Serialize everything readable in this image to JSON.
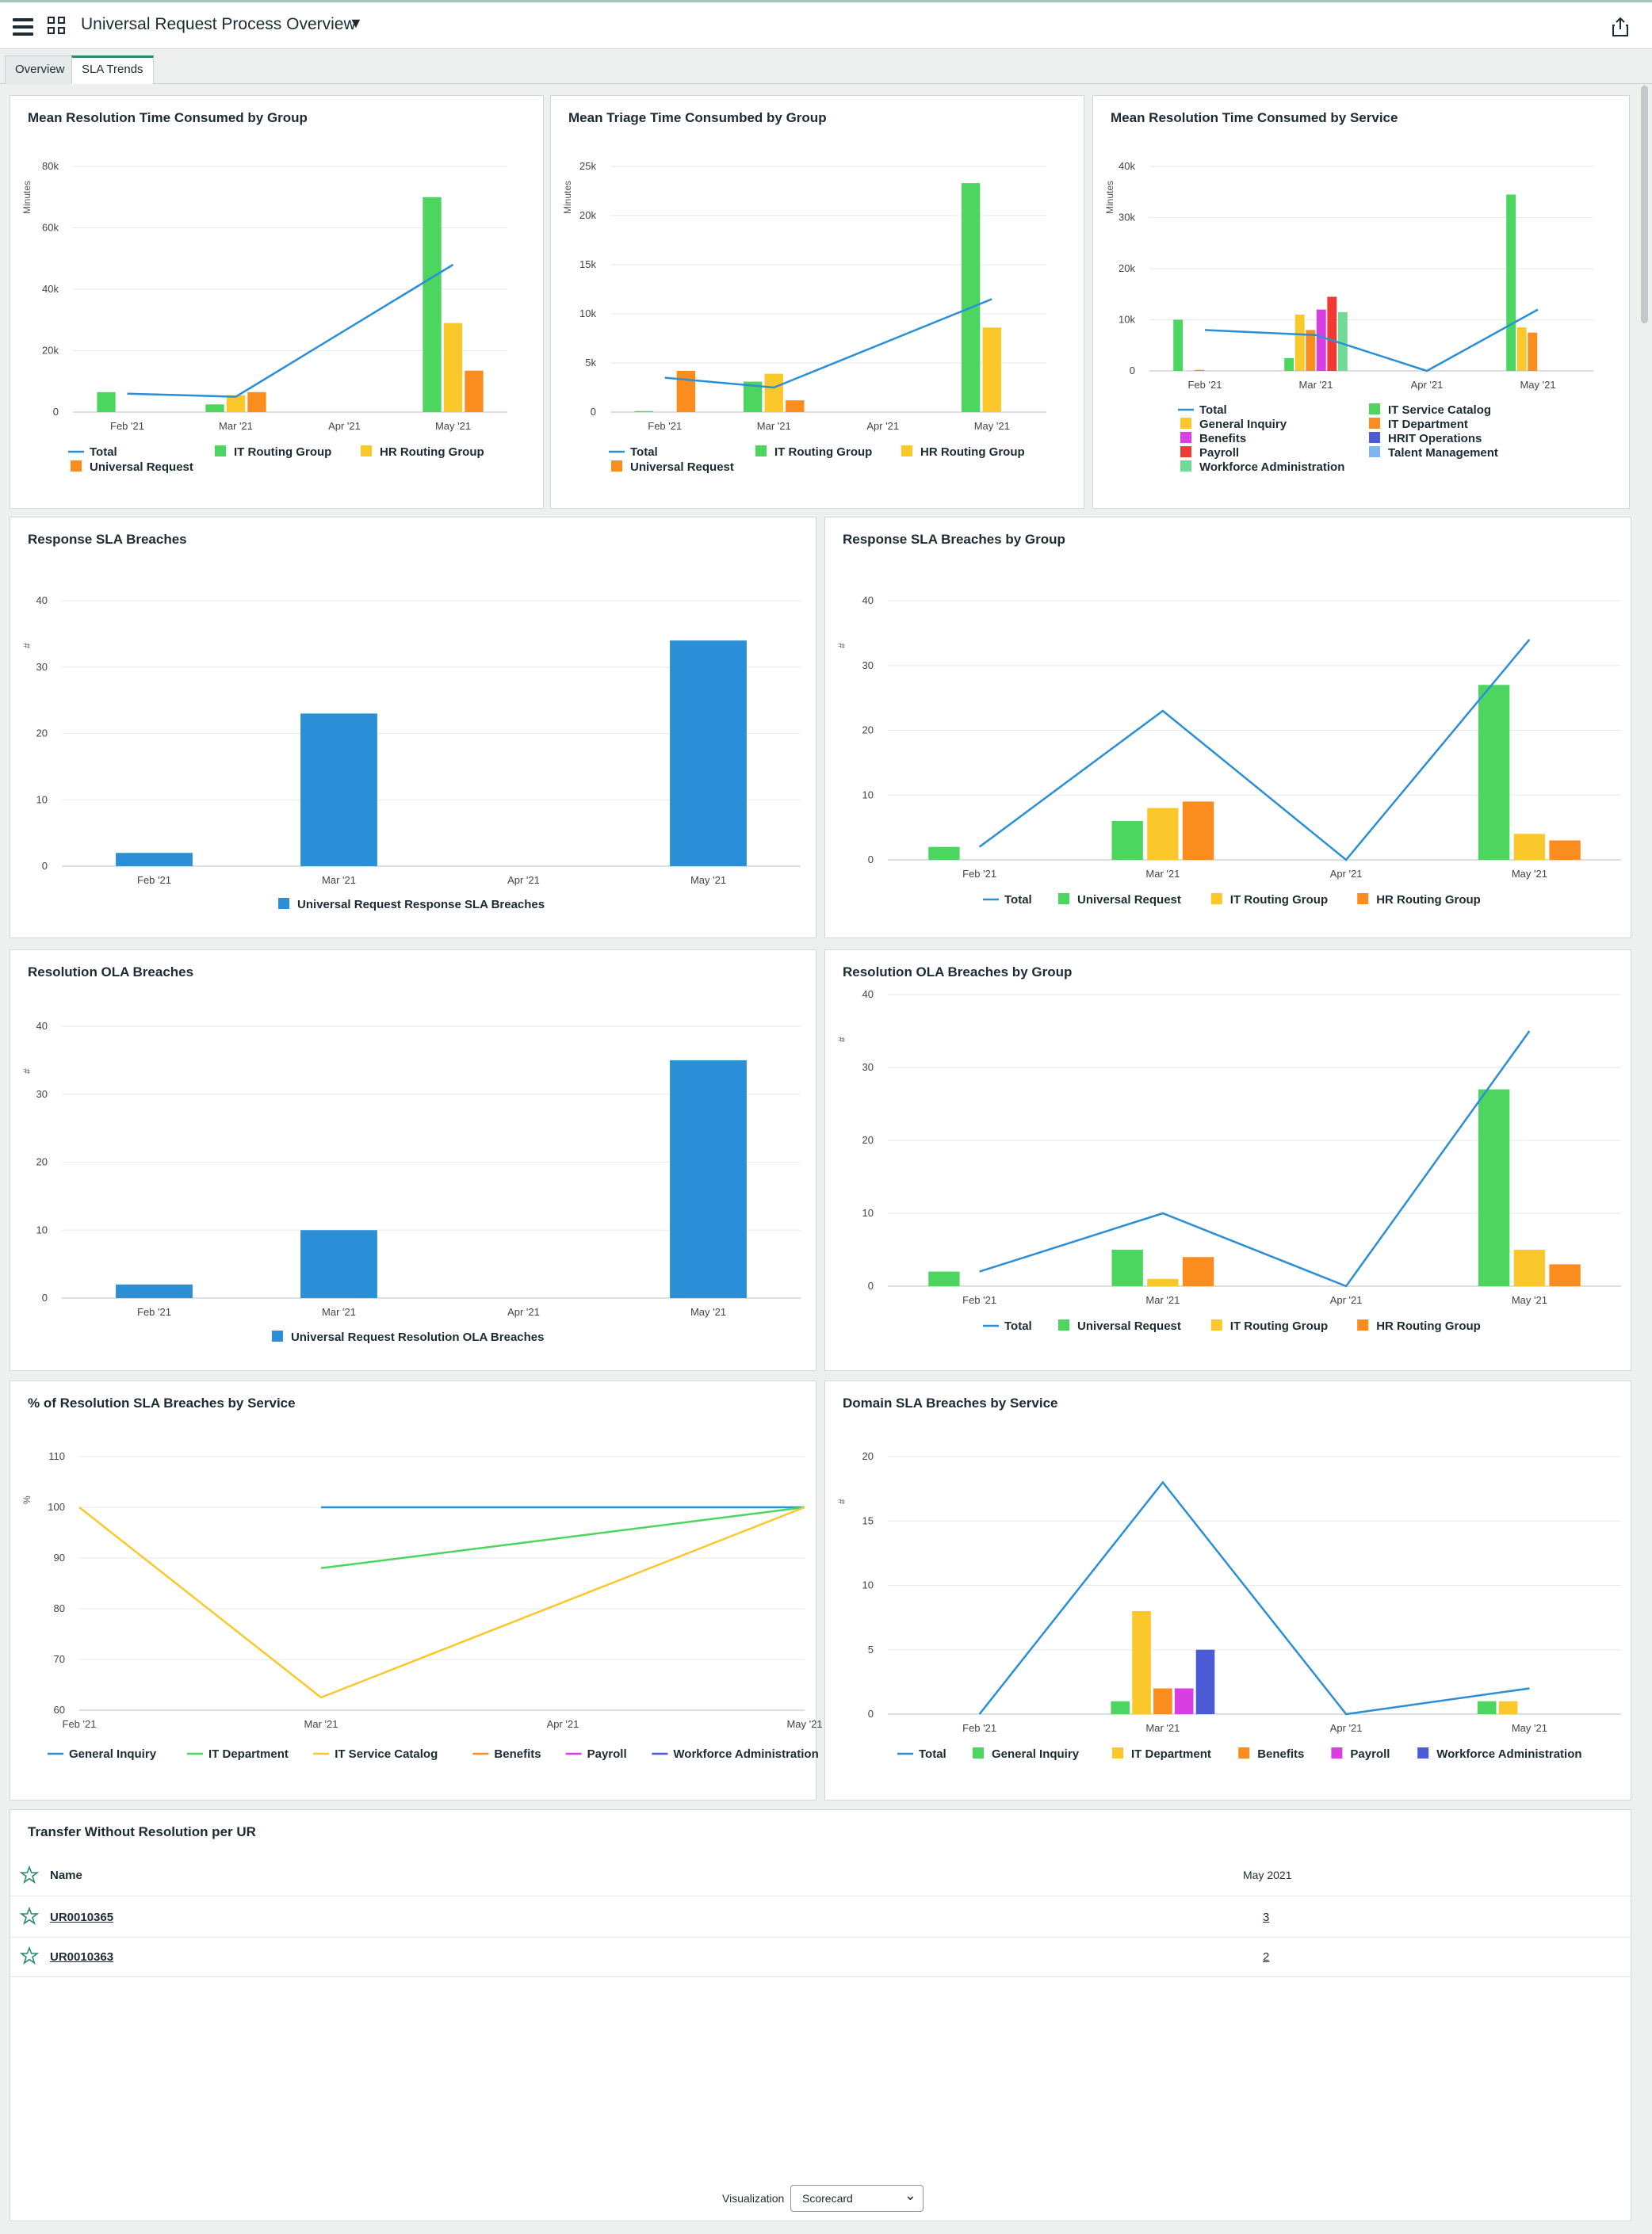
{
  "app": {
    "title": "Universal Request Process Overview"
  },
  "tabs": [
    {
      "label": "Overview"
    },
    {
      "label": "SLA Trends"
    }
  ],
  "colors": {
    "blue": "#2a8fd6",
    "green": "#4cd65f",
    "yellow": "#fbc82c",
    "orange": "#fb8c1e",
    "magenta": "#d93ee3",
    "red": "#ef3b33",
    "indigo": "#4c5ad6",
    "lightblue": "#7fb4f5",
    "mint": "#6fdb96"
  },
  "months": [
    "Feb '21",
    "Mar '21",
    "Apr '21",
    "May '21"
  ],
  "chart_data": [
    {
      "title": "Mean Resolution Time Consumed by Group",
      "type": "bar",
      "ylabel": "Minutes",
      "ylim": [
        0,
        80000
      ],
      "yticks": [
        "0",
        "20k",
        "40k",
        "60k",
        "80k"
      ],
      "categories": [
        "Feb '21",
        "Mar '21",
        "Apr '21",
        "May '21"
      ],
      "series": [
        {
          "name": "Total",
          "kind": "line",
          "color": "#2a8fd6",
          "values": [
            6000,
            5000,
            null,
            48000
          ]
        },
        {
          "name": "IT Routing Group",
          "kind": "bar",
          "color": "#4cd65f",
          "values": [
            6500,
            2500,
            0,
            70000
          ]
        },
        {
          "name": "HR Routing Group",
          "kind": "bar",
          "color": "#fbc82c",
          "values": [
            0,
            5500,
            0,
            29000
          ]
        },
        {
          "name": "Universal Request",
          "kind": "bar",
          "color": "#fb8c1e",
          "values": [
            0,
            6500,
            0,
            13500
          ]
        }
      ],
      "legend_rows": [
        [
          "Total",
          "IT Routing Group",
          "HR Routing Group"
        ],
        [
          "Universal Request"
        ]
      ]
    },
    {
      "title": "Mean Triage Time Consumbed by Group",
      "type": "bar",
      "ylabel": "Minutes",
      "ylim": [
        0,
        25000
      ],
      "yticks": [
        "0",
        "5k",
        "10k",
        "15k",
        "20k",
        "25k"
      ],
      "categories": [
        "Feb '21",
        "Mar '21",
        "Apr '21",
        "May '21"
      ],
      "series": [
        {
          "name": "Total",
          "kind": "line",
          "color": "#2a8fd6",
          "values": [
            3500,
            2500,
            null,
            11500
          ]
        },
        {
          "name": "IT Routing Group",
          "kind": "bar",
          "color": "#4cd65f",
          "values": [
            100,
            3100,
            0,
            23300
          ]
        },
        {
          "name": "HR Routing Group",
          "kind": "bar",
          "color": "#fbc82c",
          "values": [
            0,
            3900,
            0,
            8600
          ]
        },
        {
          "name": "Universal Request",
          "kind": "bar",
          "color": "#fb8c1e",
          "values": [
            4200,
            1200,
            0,
            0
          ]
        }
      ],
      "legend_rows": [
        [
          "Total",
          "IT Routing Group",
          "HR Routing Group"
        ],
        [
          "Universal Request"
        ]
      ]
    },
    {
      "title": "Mean Resolution Time Consumed by Service",
      "type": "bar",
      "ylabel": "Minutes",
      "ylim": [
        0,
        40000
      ],
      "yticks": [
        "0",
        "10k",
        "20k",
        "30k",
        "40k"
      ],
      "categories": [
        "Feb '21",
        "Mar '21",
        "Apr '21",
        "May '21"
      ],
      "series": [
        {
          "name": "Total",
          "kind": "line",
          "color": "#2a8fd6",
          "values": [
            8000,
            7000,
            0,
            12000
          ]
        },
        {
          "name": "IT Service Catalog",
          "kind": "bar",
          "color": "#4cd65f",
          "values": [
            10000,
            2500,
            0,
            34500
          ]
        },
        {
          "name": "General Inquiry",
          "kind": "bar",
          "color": "#fbc82c",
          "values": [
            0,
            11000,
            0,
            8500
          ]
        },
        {
          "name": "IT Department",
          "kind": "bar",
          "color": "#fb8c1e",
          "values": [
            200,
            8000,
            0,
            7500
          ]
        },
        {
          "name": "Benefits",
          "kind": "bar",
          "color": "#d93ee3",
          "values": [
            0,
            12000,
            0,
            0
          ]
        },
        {
          "name": "Payroll",
          "kind": "bar",
          "color": "#ef3b33",
          "values": [
            0,
            14500,
            0,
            0
          ]
        },
        {
          "name": "Workforce Administration",
          "kind": "bar",
          "color": "#6fdb96",
          "values": [
            0,
            11500,
            0,
            0
          ]
        }
      ],
      "legend_extra": [
        "HRIT Operations",
        "Talent Management"
      ],
      "legend_extra_colors": [
        "#4c5ad6",
        "#7fb4f5"
      ]
    },
    {
      "title": "Response SLA Breaches",
      "type": "bar",
      "ylabel": "#",
      "ylim": [
        0,
        40
      ],
      "yticks": [
        "0",
        "10",
        "20",
        "30",
        "40"
      ],
      "categories": [
        "Feb '21",
        "Mar '21",
        "Apr '21",
        "May '21"
      ],
      "series": [
        {
          "name": "Universal Request Response SLA Breaches",
          "kind": "bar",
          "color": "#2a8fd6",
          "values": [
            2,
            23,
            0,
            34
          ]
        }
      ]
    },
    {
      "title": "Response SLA Breaches by Group",
      "type": "bar",
      "ylabel": "#",
      "ylim": [
        0,
        40
      ],
      "yticks": [
        "0",
        "10",
        "20",
        "30",
        "40"
      ],
      "categories": [
        "Feb '21",
        "Mar '21",
        "Apr '21",
        "May '21"
      ],
      "series": [
        {
          "name": "Total",
          "kind": "line",
          "color": "#2a8fd6",
          "values": [
            2,
            23,
            0,
            34
          ]
        },
        {
          "name": "Universal Request",
          "kind": "bar",
          "color": "#4cd65f",
          "values": [
            2,
            6,
            0,
            27
          ]
        },
        {
          "name": "IT Routing Group",
          "kind": "bar",
          "color": "#fbc82c",
          "values": [
            0,
            8,
            0,
            4
          ]
        },
        {
          "name": "HR Routing Group",
          "kind": "bar",
          "color": "#fb8c1e",
          "values": [
            0,
            9,
            0,
            3
          ]
        }
      ]
    },
    {
      "title": "Resolution OLA Breaches",
      "type": "bar",
      "ylabel": "#",
      "ylim": [
        0,
        40
      ],
      "yticks": [
        "0",
        "10",
        "20",
        "30",
        "40"
      ],
      "categories": [
        "Feb '21",
        "Mar '21",
        "Apr '21",
        "May '21"
      ],
      "series": [
        {
          "name": "Universal Request Resolution OLA Breaches",
          "kind": "bar",
          "color": "#2a8fd6",
          "values": [
            2,
            10,
            0,
            35
          ]
        }
      ]
    },
    {
      "title": "Resolution OLA Breaches by Group",
      "type": "bar",
      "ylabel": "#",
      "ylim": [
        0,
        40
      ],
      "yticks": [
        "0",
        "10",
        "20",
        "30",
        "40"
      ],
      "categories": [
        "Feb '21",
        "Mar '21",
        "Apr '21",
        "May '21"
      ],
      "series": [
        {
          "name": "Total",
          "kind": "line",
          "color": "#2a8fd6",
          "values": [
            2,
            10,
            0,
            35
          ]
        },
        {
          "name": "Universal Request",
          "kind": "bar",
          "color": "#4cd65f",
          "values": [
            2,
            5,
            0,
            27
          ]
        },
        {
          "name": "IT Routing Group",
          "kind": "bar",
          "color": "#fbc82c",
          "values": [
            0,
            1,
            0,
            5
          ]
        },
        {
          "name": "HR Routing Group",
          "kind": "bar",
          "color": "#fb8c1e",
          "values": [
            0,
            4,
            0,
            3
          ]
        }
      ]
    },
    {
      "title": "% of Resolution SLA Breaches by Service",
      "type": "line",
      "ylabel": "%",
      "ylim": [
        60,
        110
      ],
      "yticks": [
        "60",
        "70",
        "80",
        "90",
        "100",
        "110"
      ],
      "categories": [
        "Feb '21",
        "Mar '21",
        "Apr '21",
        "May '21"
      ],
      "series": [
        {
          "name": "General Inquiry",
          "kind": "line",
          "color": "#2a8fd6",
          "values": [
            null,
            100,
            null,
            100
          ]
        },
        {
          "name": "IT Department",
          "kind": "line",
          "color": "#4cd65f",
          "values": [
            null,
            88,
            null,
            100
          ]
        },
        {
          "name": "IT Service Catalog",
          "kind": "line",
          "color": "#fbc82c",
          "values": [
            100,
            62.5,
            null,
            100
          ]
        },
        {
          "name": "Benefits",
          "kind": "line",
          "color": "#fb8c1e",
          "values": [
            null,
            null,
            null,
            null
          ]
        },
        {
          "name": "Payroll",
          "kind": "line",
          "color": "#d93ee3",
          "values": [
            null,
            null,
            null,
            null
          ]
        },
        {
          "name": "Workforce Administration",
          "kind": "line",
          "color": "#4c5ad6",
          "values": [
            null,
            null,
            null,
            null
          ]
        }
      ]
    },
    {
      "title": "Domain SLA Breaches by Service",
      "type": "bar",
      "ylabel": "#",
      "ylim": [
        0,
        20
      ],
      "yticks": [
        "0",
        "5",
        "10",
        "15",
        "20"
      ],
      "categories": [
        "Feb '21",
        "Mar '21",
        "Apr '21",
        "May '21"
      ],
      "series": [
        {
          "name": "Total",
          "kind": "line",
          "color": "#2a8fd6",
          "values": [
            0,
            18,
            0,
            2
          ]
        },
        {
          "name": "General Inquiry",
          "kind": "bar",
          "color": "#4cd65f",
          "values": [
            0,
            1,
            0,
            1
          ]
        },
        {
          "name": "IT Department",
          "kind": "bar",
          "color": "#fbc82c",
          "values": [
            0,
            8,
            0,
            1
          ]
        },
        {
          "name": "Benefits",
          "kind": "bar",
          "color": "#fb8c1e",
          "values": [
            0,
            2,
            0,
            0
          ]
        },
        {
          "name": "Payroll",
          "kind": "bar",
          "color": "#d93ee3",
          "values": [
            0,
            2,
            0,
            0
          ]
        },
        {
          "name": "Workforce Administration",
          "kind": "bar",
          "color": "#4c5ad6",
          "values": [
            0,
            5,
            0,
            0
          ]
        }
      ]
    }
  ],
  "scorecard": {
    "title": "Transfer Without Resolution per UR",
    "col_name": "Name",
    "col_period": "May 2021",
    "rows": [
      {
        "name": "UR0010365",
        "value": "3"
      },
      {
        "name": "UR0010363",
        "value": "2"
      }
    ],
    "viz_label": "Visualization",
    "viz_value": "Scorecard"
  },
  "icons": {
    "menu": "hamburger-icon",
    "dashboards": "grid-icon",
    "share": "share-icon",
    "star": "star-icon"
  }
}
